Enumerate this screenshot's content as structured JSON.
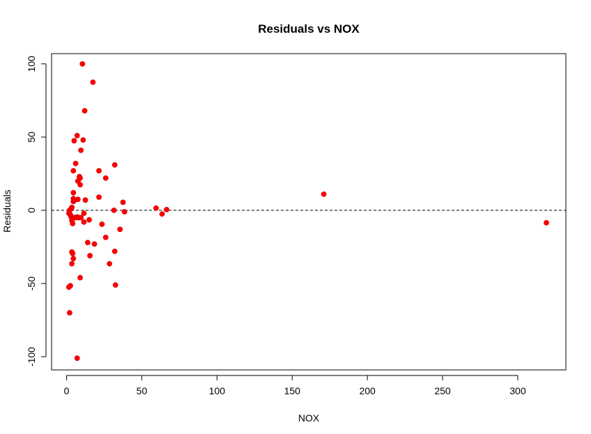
{
  "chart_data": {
    "type": "scatter",
    "title": "Residuals vs NOX",
    "xlabel": "NOX",
    "ylabel": "Residuals",
    "xlim": [
      -10,
      332
    ],
    "ylim": [
      -109,
      107
    ],
    "xticks": [
      0,
      50,
      100,
      150,
      200,
      250,
      300
    ],
    "yticks": [
      -100,
      -50,
      0,
      50,
      100
    ],
    "xtick_labels": [
      "0",
      "50",
      "100",
      "150",
      "200",
      "250",
      "300"
    ],
    "ytick_labels": [
      "-100",
      "-50",
      "0",
      "50",
      "100"
    ],
    "reference_line": {
      "y": 0,
      "style": "dashed"
    },
    "point_color": "#ff0000",
    "grid": false,
    "points": [
      [
        10.5,
        100
      ],
      [
        17.5,
        87.5
      ],
      [
        12,
        68
      ],
      [
        7,
        51
      ],
      [
        5,
        47.5
      ],
      [
        11,
        48
      ],
      [
        9.5,
        41
      ],
      [
        6,
        32
      ],
      [
        4.5,
        27
      ],
      [
        21.5,
        27
      ],
      [
        32,
        31
      ],
      [
        8.5,
        23
      ],
      [
        7.5,
        20
      ],
      [
        9,
        22
      ],
      [
        9,
        17.5
      ],
      [
        26,
        22
      ],
      [
        4.5,
        12
      ],
      [
        4.5,
        8
      ],
      [
        4.5,
        6
      ],
      [
        5.5,
        7
      ],
      [
        7.5,
        7.5
      ],
      [
        12.5,
        7
      ],
      [
        21.5,
        9
      ],
      [
        171,
        11
      ],
      [
        37.5,
        5.5
      ],
      [
        59.5,
        1.5
      ],
      [
        66.5,
        0.5
      ],
      [
        63.5,
        -2.5
      ],
      [
        38.5,
        -1
      ],
      [
        31.5,
        0
      ],
      [
        11.5,
        -2
      ],
      [
        3,
        1
      ],
      [
        3.5,
        2
      ],
      [
        2,
        0
      ],
      [
        1.5,
        -2
      ],
      [
        2.5,
        -3
      ],
      [
        3,
        -4.5
      ],
      [
        4.5,
        -5
      ],
      [
        5.5,
        -5
      ],
      [
        6.5,
        -5
      ],
      [
        7,
        -4.5
      ],
      [
        8,
        -5
      ],
      [
        9.5,
        -5
      ],
      [
        3.5,
        -7
      ],
      [
        4,
        -9
      ],
      [
        11.5,
        -8
      ],
      [
        15,
        -6.5
      ],
      [
        23.5,
        -9.5
      ],
      [
        35.5,
        -13
      ],
      [
        26,
        -18.5
      ],
      [
        319,
        -8.5
      ],
      [
        14,
        -22
      ],
      [
        18.5,
        -23
      ],
      [
        32,
        -28
      ],
      [
        3.5,
        -28.5
      ],
      [
        4,
        -29.5
      ],
      [
        4.5,
        -33
      ],
      [
        15.5,
        -31
      ],
      [
        3.5,
        -36.5
      ],
      [
        28.5,
        -36.5
      ],
      [
        32.5,
        -51
      ],
      [
        9,
        -46
      ],
      [
        2.5,
        -51.5
      ],
      [
        1.5,
        -52.5
      ],
      [
        2,
        -70
      ],
      [
        7,
        -101
      ]
    ]
  }
}
